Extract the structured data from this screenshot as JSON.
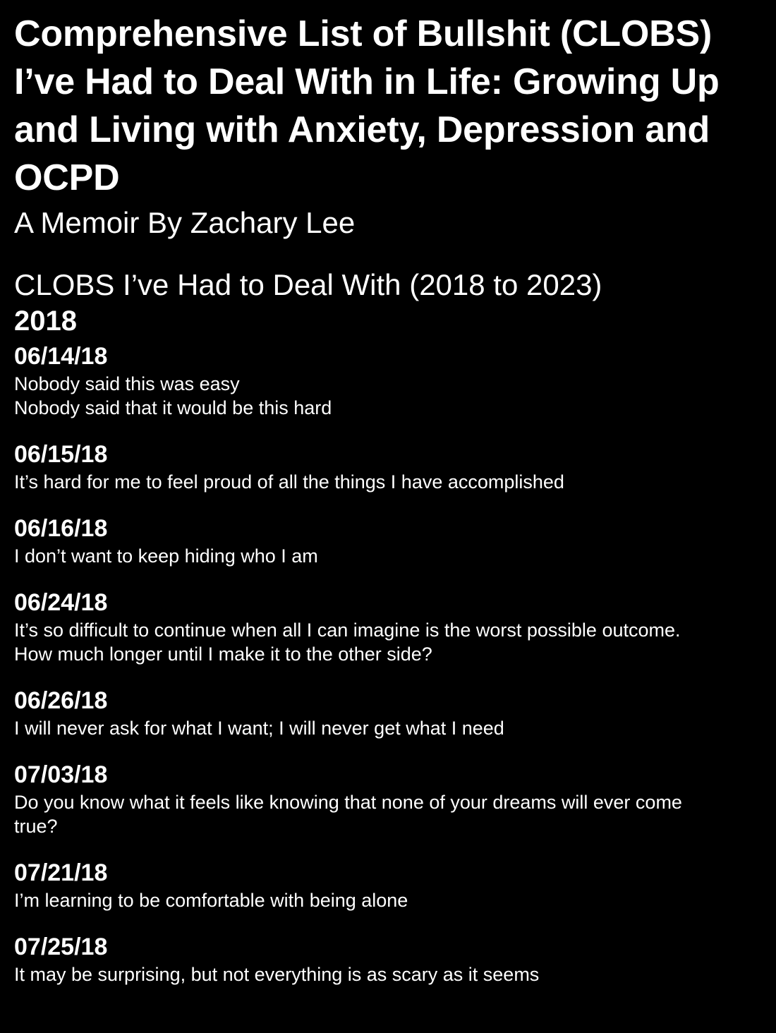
{
  "document": {
    "title": "Comprehensive List of Bullshit (CLOBS) I’ve Had to Deal With in Life: Growing Up and Living with Anxiety, Depression and OCPD",
    "subtitle": "A Memoir By Zachary Lee",
    "section_heading": "CLOBS I’ve Had to Deal With (2018 to 2023)",
    "year": "2018",
    "entries": [
      {
        "date": "06/14/18",
        "text": "Nobody said this was easy\nNobody said that it would be this hard"
      },
      {
        "date": "06/15/18",
        "text": "It’s hard for me to feel proud of all the things I have accomplished"
      },
      {
        "date": "06/16/18",
        "text": "I don’t want to keep hiding who I am"
      },
      {
        "date": "06/24/18",
        "text": "It’s so difficult to continue when all I can imagine is the worst possible outcome.\nHow much longer until I make it to the other side?"
      },
      {
        "date": "06/26/18",
        "text": "I will never ask for what I want; I will never get what I need"
      },
      {
        "date": "07/03/18",
        "text": "Do you know what it feels like knowing that none of your dreams will ever come\ntrue?"
      },
      {
        "date": "07/21/18",
        "text": "I’m learning to be comfortable with being alone"
      },
      {
        "date": "07/25/18",
        "text": "It may be surprising, but not everything is as scary as it seems"
      }
    ]
  },
  "colors": {
    "background": "#000000",
    "text": "#ffffff"
  }
}
